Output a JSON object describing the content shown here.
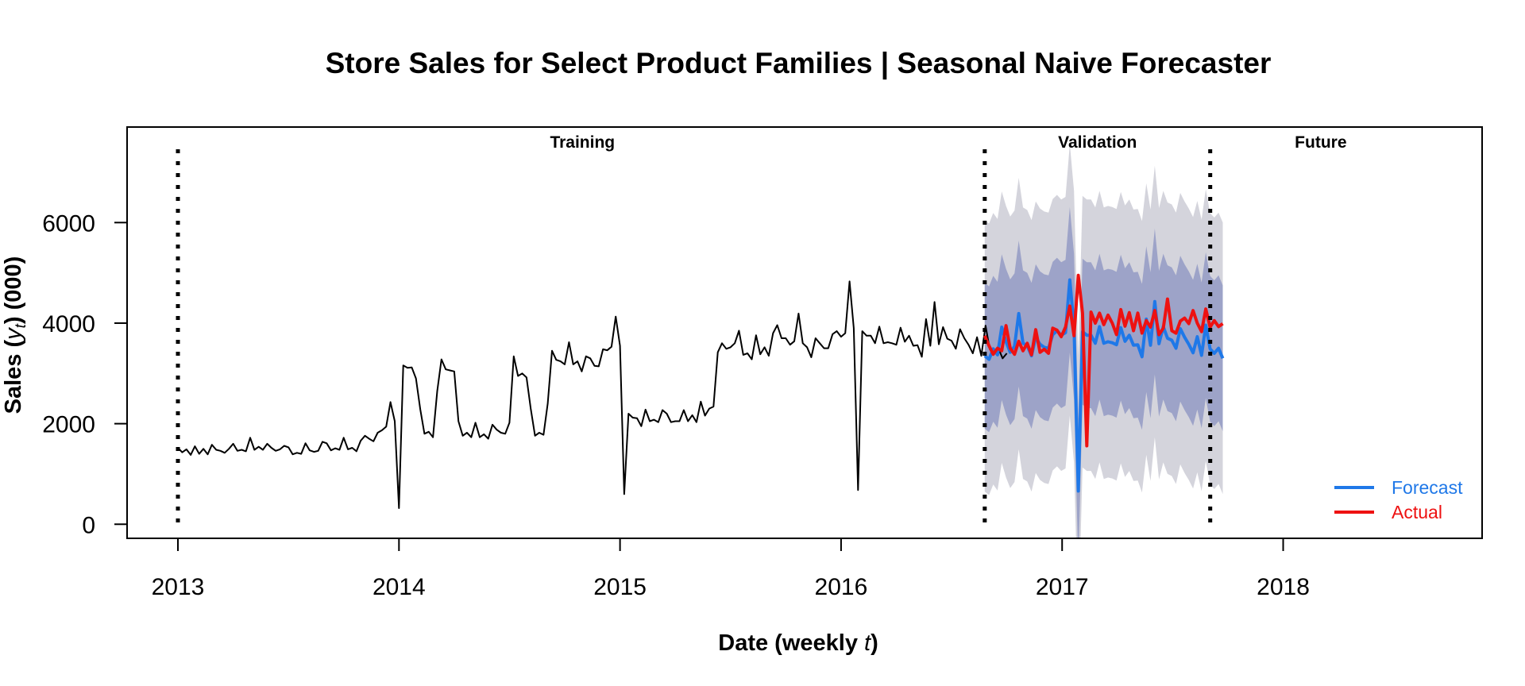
{
  "chart_data": {
    "type": "line",
    "title": "Store Sales for Select Product Families  |  Seasonal Naive Forecaster",
    "xlabel_main": "Date (weekly ",
    "xlabel_italic": "t",
    "xlabel_tail": ")",
    "ylabel_main": "Sales (",
    "ylabel_italic": "y",
    "ylabel_sub": "t",
    "ylabel_tail": ") (000)",
    "xlim": [
      2012.77,
      2018.9
    ],
    "ylim": [
      -280,
      7900
    ],
    "x_ticks": [
      2013,
      2014,
      2015,
      2016,
      2017,
      2018
    ],
    "x_tick_labels": [
      "2013",
      "2014",
      "2015",
      "2016",
      "2017",
      "2018"
    ],
    "y_ticks": [
      0,
      2000,
      4000,
      6000
    ],
    "y_tick_labels": [
      "0",
      "2000",
      "4000",
      "6000"
    ],
    "grid": false,
    "legend_position": "bottom-right",
    "colors": {
      "training": "#000000",
      "forecast": "#1f78e8",
      "actual": "#ee1111",
      "pi_outer": "#d4d4dc",
      "pi_inner": "#9da3c8",
      "divider": "#000000"
    },
    "regions": [
      {
        "label": "Training",
        "x": 2014.83
      },
      {
        "label": "Validation",
        "x": 2017.16
      },
      {
        "label": "Future",
        "x": 2018.17
      }
    ],
    "dividers": [
      2013.0,
      2016.65,
      2017.67
    ],
    "series": [
      {
        "name": "Training",
        "show_in_legend": false,
        "x_start": 2013.0,
        "x_step": 0.01923,
        "values": [
          1520,
          1430,
          1490,
          1380,
          1550,
          1400,
          1500,
          1390,
          1580,
          1480,
          1460,
          1420,
          1500,
          1600,
          1460,
          1480,
          1450,
          1720,
          1480,
          1540,
          1480,
          1600,
          1520,
          1460,
          1490,
          1560,
          1530,
          1390,
          1420,
          1400,
          1610,
          1470,
          1440,
          1460,
          1640,
          1610,
          1470,
          1510,
          1480,
          1720,
          1490,
          1520,
          1450,
          1660,
          1760,
          1700,
          1650,
          1820,
          1870,
          1940,
          2430,
          2050,
          320,
          3160,
          3110,
          3120,
          2900,
          2290,
          1800,
          1840,
          1730,
          2650,
          3280,
          3080,
          3060,
          3040,
          2050,
          1760,
          1820,
          1730,
          2020,
          1730,
          1790,
          1700,
          1980,
          1880,
          1820,
          1800,
          2020,
          3340,
          2950,
          3000,
          2920,
          2300,
          1760,
          1820,
          1780,
          2400,
          3450,
          3270,
          3240,
          3180,
          3620,
          3180,
          3240,
          3040,
          3340,
          3300,
          3150,
          3140,
          3480,
          3460,
          3530,
          4130,
          3550,
          600,
          2200,
          2120,
          2110,
          1950,
          2280,
          2050,
          2080,
          2030,
          2270,
          2200,
          2030,
          2050,
          2050,
          2270,
          2050,
          2170,
          2030,
          2440,
          2160,
          2300,
          2340,
          3420,
          3600,
          3490,
          3520,
          3600,
          3850,
          3370,
          3400,
          3280,
          3760,
          3380,
          3520,
          3350,
          3800,
          3960,
          3700,
          3700,
          3570,
          3640,
          4190,
          3600,
          3520,
          3320,
          3700,
          3600,
          3500,
          3500,
          3780,
          3840,
          3730,
          3800,
          4830,
          3900,
          680,
          3840,
          3750,
          3750,
          3600,
          3930,
          3600,
          3620,
          3600,
          3570,
          3910,
          3630,
          3750,
          3550,
          3560,
          3330,
          4080,
          3550,
          4420,
          3580,
          3920,
          3690,
          3650,
          3490,
          3880,
          3700,
          3570,
          3400,
          3720,
          3350,
          3950,
          3480,
          3390,
          3500,
          3300,
          3400
        ]
      },
      {
        "name": "Forecast",
        "show_in_legend": true,
        "x_start": 2016.65,
        "x_step": 0.01923,
        "values": [
          3350,
          3280,
          3490,
          3370,
          3920,
          3630,
          3420,
          3540,
          4190,
          3600,
          3550,
          3350,
          3720,
          3580,
          3520,
          3500,
          3770,
          3850,
          3760,
          3810,
          4860,
          3930,
          660,
          3830,
          3760,
          3760,
          3600,
          3930,
          3600,
          3630,
          3610,
          3570,
          3910,
          3640,
          3760,
          3560,
          3570,
          3330,
          4080,
          3560,
          4430,
          3590,
          3930,
          3700,
          3660,
          3500,
          3890,
          3720,
          3580,
          3410,
          3730,
          3360,
          3960,
          3490,
          3400,
          3500,
          3300
        ]
      },
      {
        "name": "Actual",
        "show_in_legend": true,
        "x_start": 2016.65,
        "x_step": 0.01923,
        "values": [
          3750,
          3550,
          3380,
          3500,
          3450,
          3950,
          3500,
          3380,
          3640,
          3450,
          3600,
          3370,
          3870,
          3420,
          3480,
          3400,
          3900,
          3860,
          3730,
          3920,
          4340,
          3750,
          4950,
          4200,
          1560,
          4220,
          4000,
          4200,
          3970,
          4160,
          4000,
          3770,
          4270,
          3940,
          4210,
          3850,
          4200,
          3800,
          4050,
          3920,
          4250,
          3770,
          3900,
          4480,
          3850,
          3800,
          4040,
          4100,
          3990,
          4250,
          4000,
          3830,
          4280,
          3920,
          4050,
          3930,
          3990
        ]
      }
    ],
    "prediction_intervals": {
      "x_start": 2016.65,
      "x_step": 0.01923,
      "inner_half_width": 1450,
      "outer_half_width": 2700
    },
    "legend": [
      {
        "label": "Forecast",
        "color": "#1f78e8"
      },
      {
        "label": "Actual",
        "color": "#ee1111"
      }
    ]
  }
}
